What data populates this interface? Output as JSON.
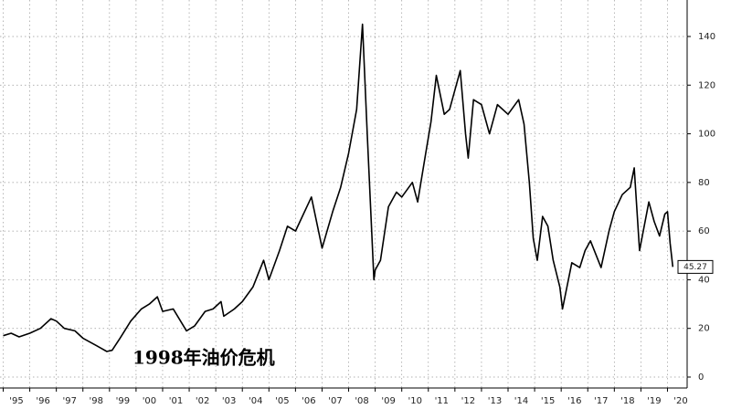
{
  "chart_data": {
    "type": "line",
    "annotation": "1998年油价危机",
    "x": [
      1995.0,
      1995.3,
      1995.6,
      1996.0,
      1996.4,
      1996.8,
      1997.0,
      1997.3,
      1997.7,
      1998.0,
      1998.5,
      1998.9,
      1999.1,
      1999.4,
      1999.8,
      2000.2,
      2000.5,
      2000.8,
      2001.0,
      2001.4,
      2001.9,
      2002.2,
      2002.6,
      2002.9,
      2003.2,
      2003.3,
      2003.7,
      2004.0,
      2004.4,
      2004.8,
      2005.0,
      2005.4,
      2005.7,
      2006.0,
      2006.6,
      2007.0,
      2007.4,
      2007.7,
      2008.0,
      2008.3,
      2008.52,
      2008.7,
      2008.95,
      2009.0,
      2009.2,
      2009.5,
      2009.8,
      2010.0,
      2010.4,
      2010.6,
      2010.9,
      2011.1,
      2011.3,
      2011.6,
      2011.8,
      2012.2,
      2012.4,
      2012.5,
      2012.7,
      2013.0,
      2013.3,
      2013.6,
      2014.0,
      2014.4,
      2014.6,
      2014.8,
      2014.95,
      2015.1,
      2015.3,
      2015.5,
      2015.7,
      2015.95,
      2016.05,
      2016.4,
      2016.7,
      2016.9,
      2017.1,
      2017.5,
      2017.8,
      2018.0,
      2018.3,
      2018.6,
      2018.75,
      2018.95,
      2019.3,
      2019.5,
      2019.7,
      2019.9,
      2020.0,
      2020.1,
      2020.2
    ],
    "values": [
      17,
      18,
      16.5,
      18,
      20,
      24,
      23,
      20,
      19,
      16,
      13,
      10.5,
      11,
      16,
      23,
      28,
      30,
      33,
      27,
      28,
      19,
      21,
      27,
      28,
      31,
      25,
      28,
      31,
      37,
      48,
      40,
      52,
      62,
      60,
      74,
      53,
      68,
      78,
      92,
      110,
      145,
      100,
      40,
      44,
      48,
      70,
      76,
      74,
      80,
      72,
      92,
      105,
      124,
      108,
      110,
      126,
      100,
      90,
      114,
      112,
      100,
      112,
      108,
      114,
      104,
      80,
      57,
      48,
      66,
      62,
      48,
      37,
      28,
      47,
      45,
      52,
      56,
      45,
      60,
      68,
      75,
      78,
      86,
      52,
      72,
      64,
      58,
      67,
      68,
      55,
      45.27
    ],
    "color": "#000000",
    "xlim": [
      1995,
      2020.74
    ],
    "xticks": [
      {
        "value": 1995,
        "label": "'95"
      },
      {
        "value": 1996,
        "label": "'96"
      },
      {
        "value": 1997,
        "label": "'97"
      },
      {
        "value": 1998,
        "label": "'98"
      },
      {
        "value": 1999,
        "label": "'99"
      },
      {
        "value": 2000,
        "label": "'00"
      },
      {
        "value": 2001,
        "label": "'01"
      },
      {
        "value": 2002,
        "label": "'02"
      },
      {
        "value": 2003,
        "label": "'03"
      },
      {
        "value": 2004,
        "label": "'04"
      },
      {
        "value": 2005,
        "label": "'05"
      },
      {
        "value": 2006,
        "label": "'06"
      },
      {
        "value": 2007,
        "label": "'07"
      },
      {
        "value": 2008,
        "label": "'08"
      },
      {
        "value": 2009,
        "label": "'09"
      },
      {
        "value": 2010,
        "label": "'10"
      },
      {
        "value": 2011,
        "label": "'11"
      },
      {
        "value": 2012,
        "label": "'12"
      },
      {
        "value": 2013,
        "label": "'13"
      },
      {
        "value": 2014,
        "label": "'14"
      },
      {
        "value": 2015,
        "label": "'15"
      },
      {
        "value": 2016,
        "label": "'16"
      },
      {
        "value": 2017,
        "label": "'17"
      },
      {
        "value": 2018,
        "label": "'18"
      },
      {
        "value": 2019,
        "label": "'19"
      },
      {
        "value": 2020,
        "label": "'20"
      }
    ],
    "ylim": [
      -4.5,
      155
    ],
    "yticks": [
      0,
      20,
      40,
      60,
      80,
      100,
      120,
      140
    ],
    "grid": true
  }
}
